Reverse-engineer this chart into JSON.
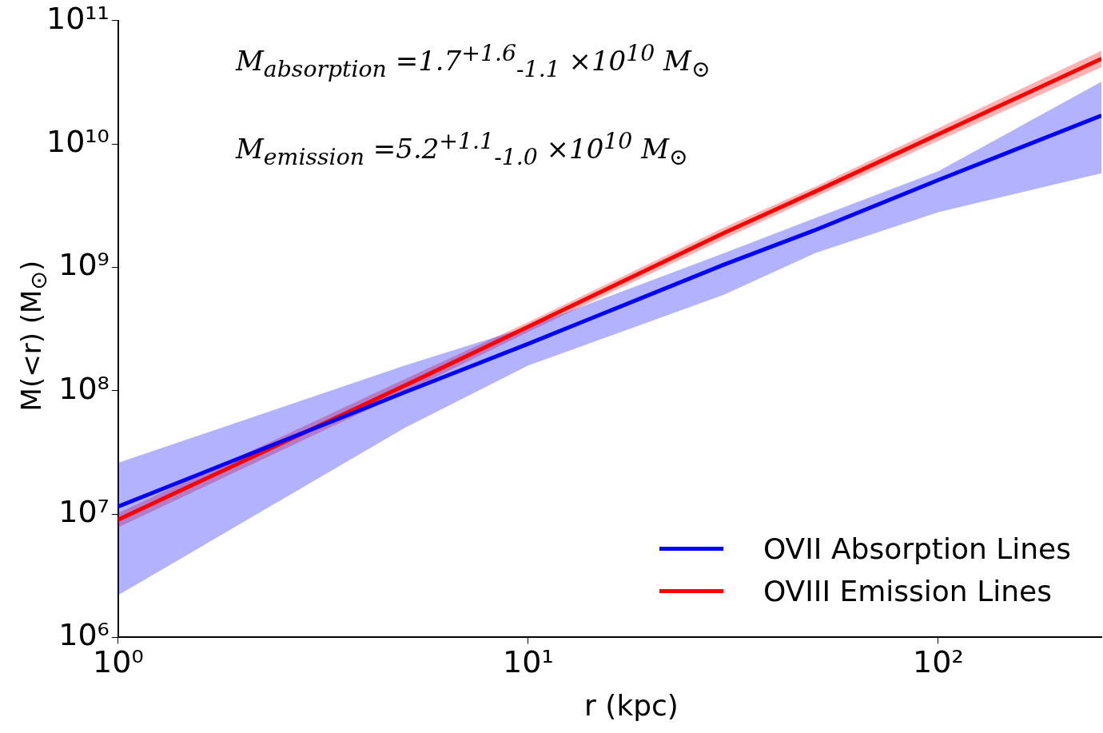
{
  "chart_data": {
    "type": "line",
    "xlabel": "r (kpc)",
    "ylabel": "M(<r) (M$_{⊙}$)",
    "log": "xy",
    "x": [
      1,
      5,
      10,
      30,
      50,
      100,
      250
    ],
    "xlim": [
      1,
      250
    ],
    "xticks": [
      {
        "value": 1,
        "label": "10⁰"
      },
      {
        "value": 10,
        "label": "10¹"
      },
      {
        "value": 100,
        "label": "10²"
      }
    ],
    "ylim": [
      1000000,
      100000000000
    ],
    "yticks": [
      {
        "value": 1000000,
        "label": "10⁶"
      },
      {
        "value": 10000000,
        "label": "10⁷"
      },
      {
        "value": 100000000,
        "label": "10⁸"
      },
      {
        "value": 1000000000,
        "label": "10⁹"
      },
      {
        "value": 10000000000,
        "label": "10¹⁰"
      },
      {
        "value": 100000000000,
        "label": "10¹¹"
      }
    ],
    "grid": false,
    "legend": "bottom right",
    "marker": "none",
    "line_style": "solid",
    "series": [
      {
        "name": "OVII Absorption Lines",
        "color": "#0000ff",
        "values": [
          11500000,
          97000000,
          240000000,
          1050000000,
          2000000000,
          5100000000,
          17000000000
        ],
        "lower": [
          2200000,
          50000000,
          160000000,
          600000000,
          1300000000,
          2800000000,
          5800000000
        ],
        "upper": [
          26000000,
          160000000,
          330000000,
          1300000000,
          2500000000,
          6000000000,
          32000000000
        ]
      },
      {
        "name": "OVIII Emission Lines",
        "color": "#ff0000",
        "values": [
          9000000,
          110000000,
          330000000,
          1900000000,
          4100000000,
          12000000000,
          49000000000
        ],
        "lower": [
          7800000,
          97000000,
          300000000,
          1700000000,
          3700000000,
          10600000000,
          42000000000
        ],
        "upper": [
          10200000,
          124000000,
          360000000,
          2100000000,
          4500000000,
          13400000000,
          57000000000
        ]
      }
    ],
    "annotations": [
      "M$_{absorption}$ =1.7$^{+1.6}$$_{-1.1}$ ×10$^{10}$ M$_{⊙}$",
      "M$_{emission}$ =5.2$^{+1.1}$$_{-1.0}$ ×10$^{10}$ M$_{⊙}$"
    ]
  }
}
